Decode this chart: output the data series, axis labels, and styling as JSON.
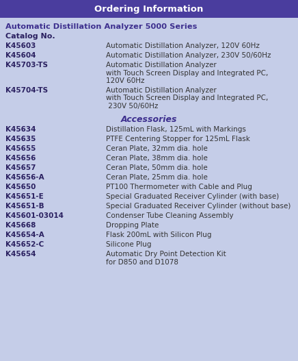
{
  "title": "Ordering Information",
  "title_bg": "#4a3d9e",
  "title_color": "#ffffff",
  "bg_color": "#c5cde8",
  "section1_header": "Automatic Distillation Analyzer 5000 Series",
  "section1_color": "#3d2f8e",
  "catalog_label": "Catalog No.",
  "section2_header": "Accessories",
  "section2_color": "#3d2f8e",
  "cat_color": "#2a2060",
  "desc_color": "#333333",
  "items1": [
    [
      "K45603",
      [
        "Automatic Distillation Analyzer, 120V 60Hz"
      ]
    ],
    [
      "K45604",
      [
        "Automatic Distillation Analyzer, 230V 50/60Hz"
      ]
    ],
    [
      "K45703-TS",
      [
        "Automatic Distillation Analyzer",
        "with Touch Screen Display and Integrated PC,",
        "120V 60Hz"
      ]
    ],
    [
      "K45704-TS",
      [
        "Automatic Distillation Analyzer",
        "with Touch Screen Display and Integrated PC,",
        " 230V 50/60Hz"
      ]
    ]
  ],
  "items2": [
    [
      "K45634",
      [
        "Distillation Flask, 125mL with Markings"
      ]
    ],
    [
      "K45635",
      [
        "PTFE Centering Stopper for 125mL Flask"
      ]
    ],
    [
      "K45655",
      [
        "Ceran Plate, 32mm dia. hole"
      ]
    ],
    [
      "K45656",
      [
        "Ceran Plate, 38mm dia. hole"
      ]
    ],
    [
      "K45657",
      [
        "Ceran Plate, 50mm dia. hole"
      ]
    ],
    [
      "K45656-A",
      [
        "Ceran Plate, 25mm dia. hole"
      ]
    ],
    [
      "K45650",
      [
        "PT100 Thermometer with Cable and Plug"
      ]
    ],
    [
      "K45651-E",
      [
        "Special Graduated Receiver Cylinder (with base)"
      ]
    ],
    [
      "K45651-B",
      [
        "Special Graduated Receiver Cylinder (without base)"
      ]
    ],
    [
      "K45601-03014",
      [
        "Condenser Tube Cleaning Assembly"
      ]
    ],
    [
      "K45668",
      [
        "Dropping Plate"
      ]
    ],
    [
      "K45654-A",
      [
        "Flask 200mL with Silicon Plug"
      ]
    ],
    [
      "K45652-C",
      [
        "Silicone Plug"
      ]
    ],
    [
      "K45654",
      [
        "Automatic Dry Point Detection Kit",
        "for D850 and D1078"
      ]
    ]
  ],
  "fig_w": 4.36,
  "fig_h": 5.27,
  "dpi": 100
}
